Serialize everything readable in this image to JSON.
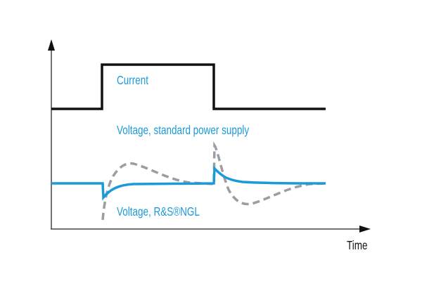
{
  "labels": {
    "current": "Current",
    "voltage_standard": "Voltage, standard power supply",
    "voltage_ngl": "Voltage, R&S®NGL",
    "x_axis": "Time"
  },
  "colors": {
    "current": "#111111",
    "voltage_ngl": "#1a9ad8",
    "voltage_standard": "#9a9ea3",
    "axis": "#222222"
  }
}
